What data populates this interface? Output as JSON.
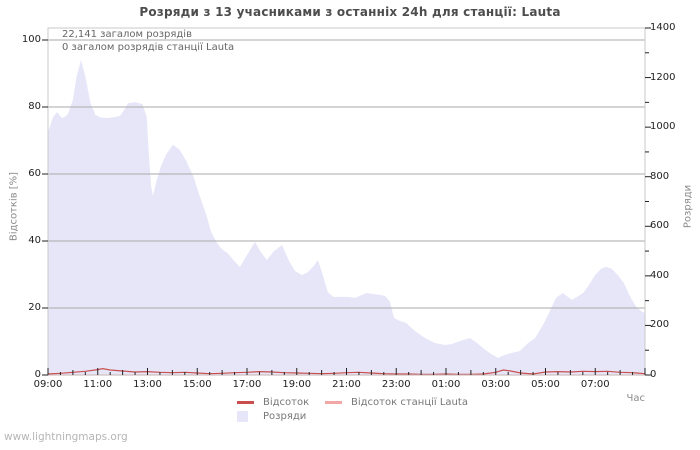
{
  "title": "Розряди з 13 учасниками з останніх 24h для станції: Lauta",
  "watermark": "www.lightningmaps.org",
  "annotations": {
    "total": "22,141 загалом розрядів",
    "station_total": "0 загалом розрядів станції Lauta"
  },
  "axes": {
    "x_label": "Час",
    "y_left_label": "Відсотків  [%]",
    "y_right_label": "Розряди",
    "x_tick_labels": [
      "09:00",
      "11:00",
      "13:00",
      "15:00",
      "17:00",
      "19:00",
      "21:00",
      "23:00",
      "01:00",
      "03:00",
      "05:00",
      "07:00"
    ],
    "y_left_ticks": [
      0,
      20,
      40,
      60,
      80,
      100
    ],
    "y_right_ticks": [
      0,
      200,
      400,
      600,
      800,
      1000,
      1200,
      1400
    ]
  },
  "legend": [
    {
      "label": "Відсоток",
      "type": "line",
      "color": "#c94f4f"
    },
    {
      "label": "Відсоток станції Lauta",
      "type": "line",
      "color": "#f2a6a6"
    },
    {
      "label": "Розряди",
      "type": "area",
      "color": "#e6e6f8"
    }
  ],
  "colors": {
    "area": "#e6e6f8",
    "percent_line": "#c94f4f",
    "station_line": "#f2a6a6",
    "grid": "#aaaaaa",
    "border": "#c8c8c8",
    "tick": "#222222"
  },
  "chart_data": {
    "type": "area",
    "title": "Розряди з 13 учасниками з останніх 24h для станції: Lauta",
    "xlabel": "Час",
    "ylabel_left": "Відсотків [%]",
    "ylabel_right": "Розряди",
    "x_unit": "hours after 09:00",
    "x_range_hours": [
      0,
      24
    ],
    "x_tick_labels": [
      "09:00",
      "11:00",
      "13:00",
      "15:00",
      "17:00",
      "19:00",
      "21:00",
      "23:00",
      "01:00",
      "03:00",
      "05:00",
      "07:00"
    ],
    "ylim_left_percent": [
      0,
      100
    ],
    "ylim_right_discharges": [
      0,
      1400
    ],
    "grid": true,
    "legend_position": "bottom",
    "total_discharges": 22141,
    "station_discharges": 0,
    "participants": 13,
    "station": "Lauta",
    "series": [
      {
        "name": "Розряди",
        "type": "area",
        "axis": "right",
        "points": [
          [
            0,
            980
          ],
          [
            0.2,
            1040
          ],
          [
            0.36,
            1061
          ],
          [
            0.56,
            1037
          ],
          [
            0.68,
            1041
          ],
          [
            0.8,
            1053
          ],
          [
            1.0,
            1110
          ],
          [
            1.15,
            1205
          ],
          [
            1.33,
            1271
          ],
          [
            1.5,
            1205
          ],
          [
            1.7,
            1100
          ],
          [
            1.9,
            1050
          ],
          [
            2.1,
            1039
          ],
          [
            2.4,
            1037
          ],
          [
            2.7,
            1041
          ],
          [
            2.89,
            1045
          ],
          [
            3.0,
            1060
          ],
          [
            3.22,
            1096
          ],
          [
            3.5,
            1101
          ],
          [
            3.8,
            1093
          ],
          [
            3.97,
            1040
          ],
          [
            4.05,
            900
          ],
          [
            4.15,
            760
          ],
          [
            4.22,
            722
          ],
          [
            4.35,
            780
          ],
          [
            4.55,
            845
          ],
          [
            4.75,
            890
          ],
          [
            5.02,
            929
          ],
          [
            5.3,
            908
          ],
          [
            5.55,
            865
          ],
          [
            5.85,
            800
          ],
          [
            6.1,
            722
          ],
          [
            6.35,
            650
          ],
          [
            6.55,
            580
          ],
          [
            6.75,
            540
          ],
          [
            6.95,
            512
          ],
          [
            7.24,
            490
          ],
          [
            7.52,
            456
          ],
          [
            7.72,
            436
          ],
          [
            8.0,
            484
          ],
          [
            8.32,
            537
          ],
          [
            8.56,
            496
          ],
          [
            8.8,
            464
          ],
          [
            9.08,
            500
          ],
          [
            9.41,
            524
          ],
          [
            9.69,
            460
          ],
          [
            9.93,
            420
          ],
          [
            10.21,
            403
          ],
          [
            10.45,
            415
          ],
          [
            10.69,
            440
          ],
          [
            10.85,
            464
          ],
          [
            11.01,
            415
          ],
          [
            11.25,
            335
          ],
          [
            11.46,
            315
          ],
          [
            12.06,
            315
          ],
          [
            12.34,
            311
          ],
          [
            12.62,
            323
          ],
          [
            12.82,
            331
          ],
          [
            13.06,
            327
          ],
          [
            13.35,
            323
          ],
          [
            13.55,
            319
          ],
          [
            13.75,
            295
          ],
          [
            13.91,
            230
          ],
          [
            14.15,
            218
          ],
          [
            14.39,
            210
          ],
          [
            14.75,
            178
          ],
          [
            15.16,
            149
          ],
          [
            15.56,
            129
          ],
          [
            15.96,
            121
          ],
          [
            16.24,
            125
          ],
          [
            16.56,
            137
          ],
          [
            16.97,
            149
          ],
          [
            17.25,
            129
          ],
          [
            17.53,
            105
          ],
          [
            17.81,
            85
          ],
          [
            18.09,
            69
          ],
          [
            18.37,
            81
          ],
          [
            18.65,
            89
          ],
          [
            18.97,
            97
          ],
          [
            19.3,
            129
          ],
          [
            19.58,
            149
          ],
          [
            19.9,
            202
          ],
          [
            20.14,
            250
          ],
          [
            20.42,
            311
          ],
          [
            20.7,
            331
          ],
          [
            20.9,
            315
          ],
          [
            21.06,
            303
          ],
          [
            21.27,
            315
          ],
          [
            21.51,
            331
          ],
          [
            21.75,
            363
          ],
          [
            21.99,
            403
          ],
          [
            22.23,
            428
          ],
          [
            22.43,
            436
          ],
          [
            22.67,
            428
          ],
          [
            22.91,
            403
          ],
          [
            23.15,
            371
          ],
          [
            23.39,
            319
          ],
          [
            23.63,
            278
          ],
          [
            23.84,
            258
          ],
          [
            24,
            250
          ]
        ]
      },
      {
        "name": "Відсоток",
        "type": "line",
        "axis": "left",
        "points": [
          [
            0,
            0.3
          ],
          [
            0.5,
            0.5
          ],
          [
            1,
            0.8
          ],
          [
            1.5,
            1.1
          ],
          [
            2,
            1.6
          ],
          [
            2.2,
            1.9
          ],
          [
            2.5,
            1.5
          ],
          [
            3,
            1.2
          ],
          [
            3.5,
            0.9
          ],
          [
            4,
            1.0
          ],
          [
            4.5,
            0.8
          ],
          [
            5,
            0.7
          ],
          [
            5.5,
            0.8
          ],
          [
            6,
            0.6
          ],
          [
            6.5,
            0.4
          ],
          [
            7,
            0.5
          ],
          [
            7.5,
            0.7
          ],
          [
            8,
            0.8
          ],
          [
            8.5,
            1.0
          ],
          [
            9,
            0.9
          ],
          [
            9.5,
            0.7
          ],
          [
            10,
            0.6
          ],
          [
            10.5,
            0.5
          ],
          [
            11,
            0.4
          ],
          [
            11.5,
            0.5
          ],
          [
            12,
            0.7
          ],
          [
            12.5,
            0.8
          ],
          [
            13,
            0.6
          ],
          [
            13.5,
            0.4
          ],
          [
            14,
            0.3
          ],
          [
            14.5,
            0.3
          ],
          [
            15,
            0.2
          ],
          [
            15.5,
            0.2
          ],
          [
            16,
            0.3
          ],
          [
            16.5,
            0.2
          ],
          [
            17,
            0.2
          ],
          [
            17.5,
            0.3
          ],
          [
            18,
            0.8
          ],
          [
            18.3,
            1.5
          ],
          [
            18.6,
            1.2
          ],
          [
            19,
            0.6
          ],
          [
            19.5,
            0.3
          ],
          [
            20,
            0.9
          ],
          [
            20.5,
            1.0
          ],
          [
            21,
            0.9
          ],
          [
            21.5,
            1.1
          ],
          [
            22,
            1.0
          ],
          [
            22.5,
            1.1
          ],
          [
            23,
            0.8
          ],
          [
            23.5,
            0.7
          ],
          [
            24,
            0.4
          ]
        ]
      },
      {
        "name": "Відсоток станції Lauta",
        "type": "line",
        "axis": "left",
        "points": [
          [
            0,
            0
          ],
          [
            24,
            0
          ]
        ]
      }
    ]
  }
}
